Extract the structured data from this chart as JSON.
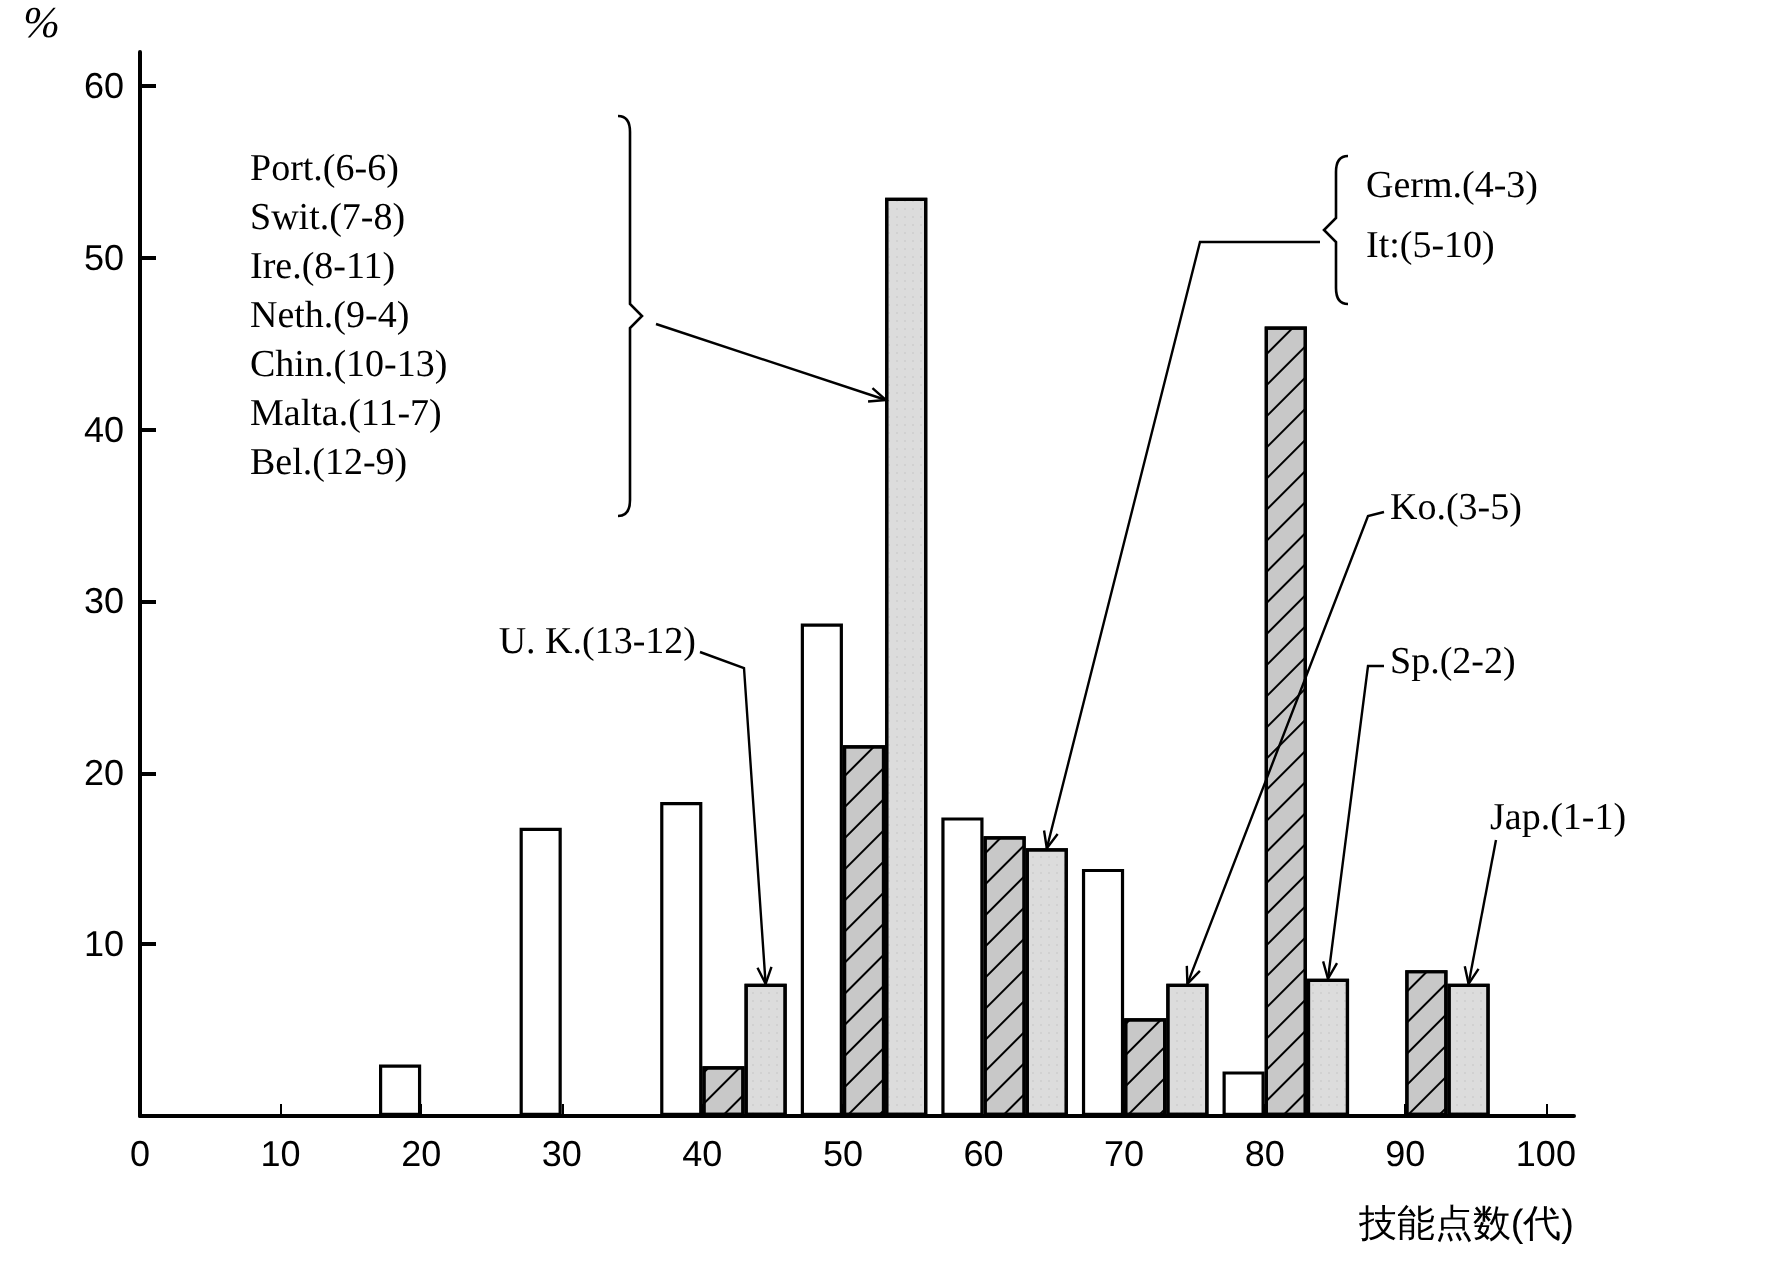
{
  "chart_data": {
    "type": "bar",
    "xlabel": "技能点数(代)",
    "ylabel": "%",
    "xlim": [
      0,
      102
    ],
    "xticks": [
      0,
      10,
      20,
      30,
      40,
      50,
      60,
      70,
      80,
      90,
      100
    ],
    "ylim": [
      0,
      62
    ],
    "yticks": [
      10,
      20,
      30,
      40,
      50,
      60
    ],
    "grid": false,
    "series": [
      {
        "color": "#ffffff",
        "x": [
          18.5,
          28.5,
          38.5,
          48.5,
          58.5,
          68.5,
          78.5
        ],
        "values": [
          3,
          16.8,
          18.3,
          28.7,
          17.4,
          14.4,
          2.6
        ]
      },
      {
        "color": "#c8c8c8",
        "x": [
          41.5,
          51.5,
          61.5,
          71.5,
          81.5,
          91.5
        ],
        "values": [
          2.9,
          21.6,
          16.3,
          5.7,
          46,
          8.5
        ]
      },
      {
        "color": "#dcdcdc",
        "x": [
          44.5,
          54.5,
          64.5,
          74.5,
          84.5,
          94.5
        ],
        "values": [
          7.7,
          53.5,
          15.6,
          7.7,
          8,
          7.7
        ]
      }
    ],
    "annotations": [
      "Port.(6-6)\nSwit.(7-8)\nIre.(8-11)\nNeth.(9-4)\nChin.(10-13)\nMalta.(11-7)\nBel.(12-9)",
      {
        "text": "Germ.(4-3)\nIt:(5-10)",
        "x": 64.5,
        "y": 15.6
      },
      {
        "text": "Ko.(3-5)",
        "x": 74.5,
        "y": 7.7
      },
      {
        "text": "Sp.(2-2)",
        "x": 84.5,
        "y": 8
      },
      {
        "text": "Jap.(1-1)",
        "x": 94.5,
        "y": 7.7
      },
      {
        "text": "U. K.(13-12)",
        "x": 44.5,
        "y": 7.7
      }
    ]
  }
}
